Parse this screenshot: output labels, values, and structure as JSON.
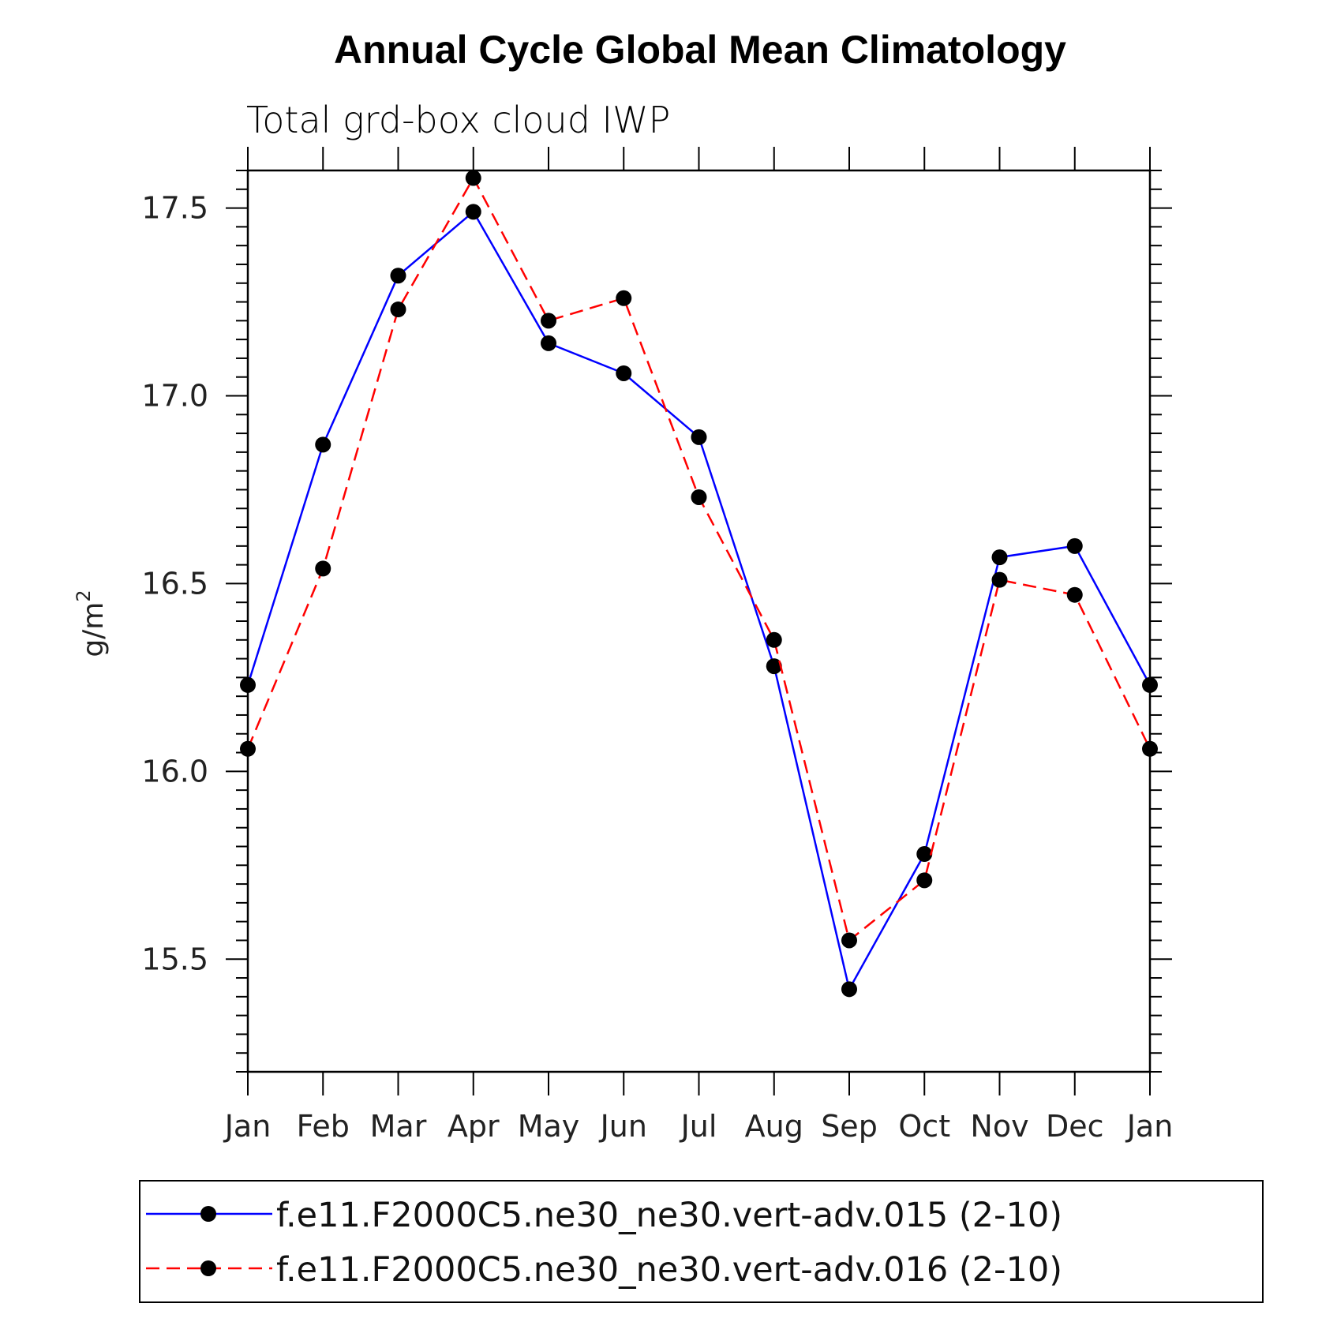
{
  "chart_data": {
    "type": "line",
    "title": "Annual Cycle Global Mean Climatology",
    "subtitle": "Total grd-box cloud IWP",
    "ylabel": "g/m",
    "ylabel_superscript": "2",
    "xlabel": "",
    "categories": [
      "Jan",
      "Feb",
      "Mar",
      "Apr",
      "May",
      "Jun",
      "Jul",
      "Aug",
      "Sep",
      "Oct",
      "Nov",
      "Dec",
      "Jan"
    ],
    "ylim": [
      15.2,
      17.6
    ],
    "yticks": [
      "15.5",
      "16.0",
      "16.5",
      "17.0",
      "17.5"
    ],
    "grid": false,
    "legend_position": "bottom",
    "series": [
      {
        "name": "f.e11.F2000C5.ne30_ne30.vert-adv.015 (2-10)",
        "color": "#0000ff",
        "line_style": "solid",
        "marker": "filled-circle",
        "values": [
          16.23,
          16.87,
          17.32,
          17.49,
          17.14,
          17.06,
          16.89,
          16.28,
          15.42,
          15.78,
          16.57,
          16.6,
          16.23
        ]
      },
      {
        "name": "f.e11.F2000C5.ne30_ne30.vert-adv.016 (2-10)",
        "color": "#ff0000",
        "line_style": "dashed",
        "marker": "filled-circle",
        "values": [
          16.06,
          16.54,
          17.23,
          17.58,
          17.2,
          17.26,
          16.73,
          16.35,
          15.55,
          15.71,
          16.51,
          16.47,
          16.06
        ]
      }
    ]
  }
}
